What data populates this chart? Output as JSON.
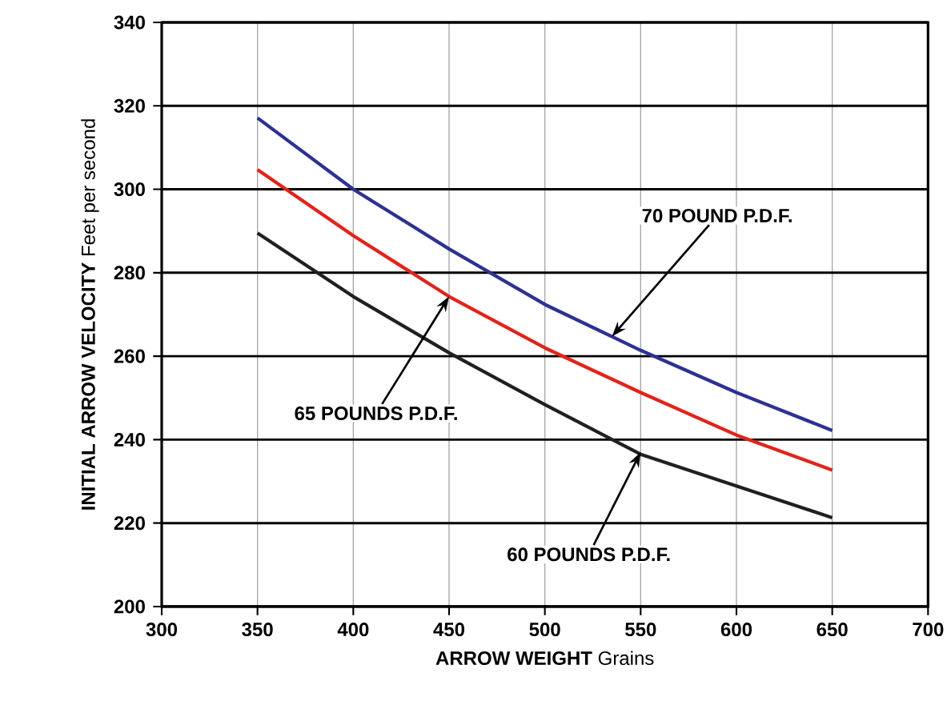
{
  "chart_data": {
    "type": "line",
    "xlabel": "**ARROW WEIGHT** Grains",
    "ylabel": "**INITIAL ARROW VELOCITY** Feet per second",
    "x": [
      350,
      400,
      450,
      500,
      550,
      600,
      650
    ],
    "series": [
      {
        "color": "#2e3192",
        "values": [
          317.1,
          300,
          285.7,
          272.4,
          261.4,
          251.3,
          242.2
        ]
      },
      {
        "color": "#e2231a",
        "values": [
          304.7,
          288.9,
          274.3,
          262,
          251.3,
          241.1,
          232.7
        ]
      },
      {
        "color": "#231f20",
        "values": [
          289.5,
          274.3,
          260.8,
          248.4,
          236.5,
          228.9,
          221.3
        ]
      }
    ],
    "xlim": [
      300,
      700
    ],
    "ylim": [
      200,
      340
    ],
    "xticks": [
      300,
      350,
      400,
      450,
      500,
      550,
      600,
      650,
      700
    ],
    "yticks": [
      200,
      220,
      240,
      260,
      280,
      300,
      320,
      340
    ],
    "grid": true,
    "marker": "none",
    "line_style": "solid",
    "annotations": [
      {
        "text": "70 POUND P.D.F.",
        "x": 535,
        "y": 264.7
      },
      {
        "text": "65 POUNDS P.D.F.",
        "x": 450,
        "y": 274.3
      },
      {
        "text": "60 POUNDS P.D.F.",
        "x": 550,
        "y": 237
      }
    ]
  }
}
